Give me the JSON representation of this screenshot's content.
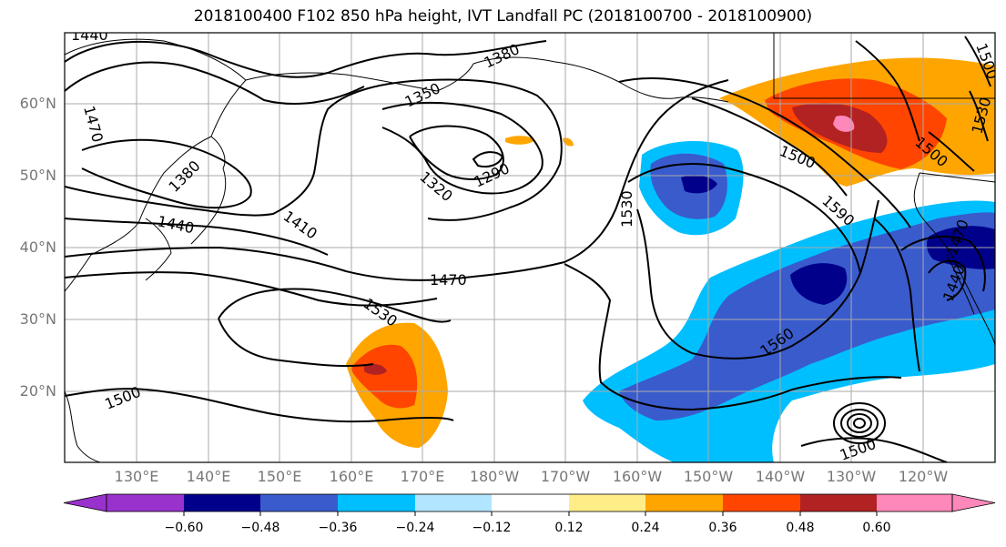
{
  "title": "2018100400 F102 850 hPa height, IVT Landfall PC (2018100700 - 2018100900)",
  "lon_labels": [
    "130°E",
    "140°E",
    "150°E",
    "160°E",
    "170°E",
    "180°W",
    "170°W",
    "160°W",
    "150°W",
    "140°W",
    "130°W",
    "120°W"
  ],
  "lat_labels": [
    "60°N",
    "50°N",
    "40°N",
    "30°N",
    "20°N"
  ],
  "contour_labels": [
    "1440",
    "1470",
    "1380",
    "1350",
    "1320",
    "1290",
    "1380",
    "1440",
    "1410",
    "1470",
    "1530",
    "1530",
    "1500",
    "1590",
    "1560",
    "1500",
    "1500",
    "1530",
    "1500",
    "1470",
    "1440",
    "1500"
  ],
  "colorbar": {
    "ticks": [
      "−0.60",
      "−0.48",
      "−0.36",
      "−0.24",
      "−0.12",
      "0.12",
      "0.24",
      "0.36",
      "0.48",
      "0.60"
    ],
    "colors": [
      "#9932cc",
      "#00008b",
      "#3a5bcc",
      "#00bfff",
      "#b2e5ff",
      "#ffffff",
      "#ffee88",
      "#ffa500",
      "#ff4500",
      "#b22222",
      "#ff88bb"
    ]
  },
  "fill_colors": {
    "neg_light": "#00bfff",
    "neg_mid": "#3a5bcc",
    "neg_dark": "#00008b",
    "pos_light": "#ffa500",
    "pos_mid": "#ff4500",
    "pos_dark": "#b22222",
    "pos_max": "#ff88bb"
  }
}
